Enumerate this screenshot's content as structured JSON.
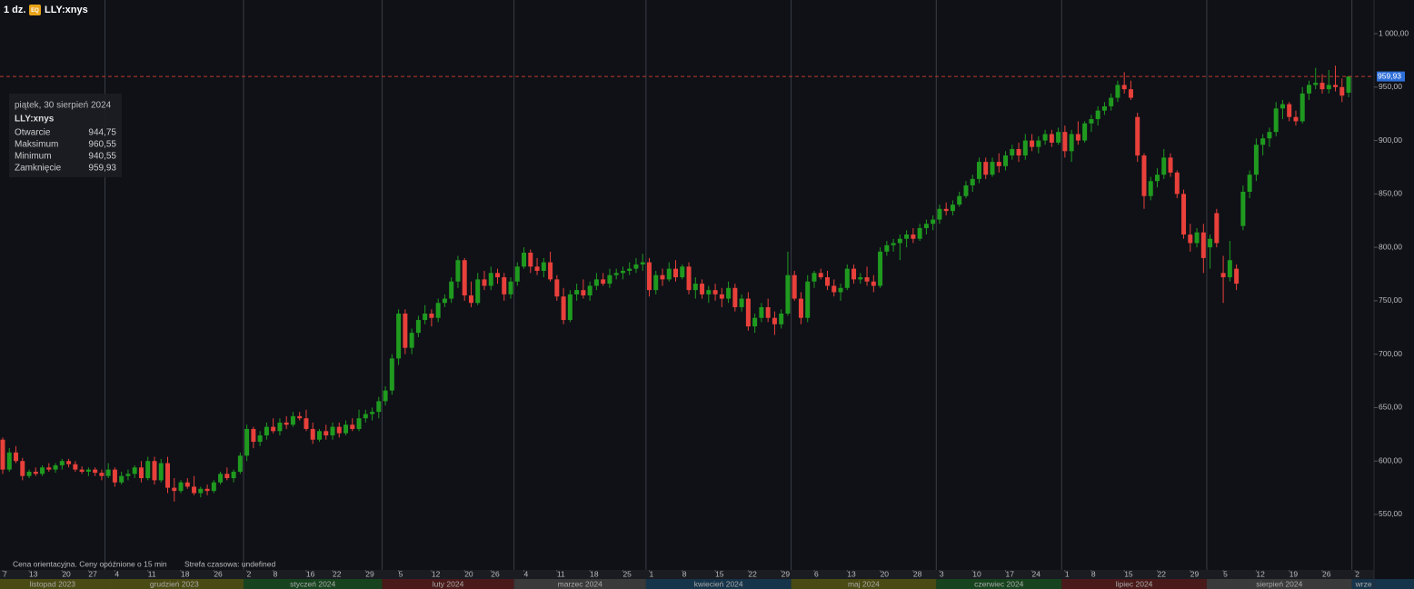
{
  "chart_data": {
    "type": "candlestick",
    "interval": "1 dz.",
    "exchange_badge": "EQ",
    "symbol": "LLY:xnys",
    "ylim": [
      498.1,
      1031.5
    ],
    "yticks": [
      {
        "value": 550,
        "label": "550,00"
      },
      {
        "value": 600,
        "label": "600,00"
      },
      {
        "value": 650,
        "label": "650,00"
      },
      {
        "value": 700,
        "label": "700,00"
      },
      {
        "value": 750,
        "label": "750,00"
      },
      {
        "value": 800,
        "label": "800,00"
      },
      {
        "value": 850,
        "label": "850,00"
      },
      {
        "value": 900,
        "label": "900,00"
      },
      {
        "value": 950,
        "label": "950,00"
      },
      {
        "value": 1000,
        "label": "1 000,00"
      }
    ],
    "xticks": [
      {
        "value": 0,
        "label": "7"
      },
      {
        "value": 4,
        "label": "13"
      },
      {
        "value": 9,
        "label": "20"
      },
      {
        "value": 13,
        "label": "27"
      },
      {
        "value": 17,
        "label": "4"
      },
      {
        "value": 22,
        "label": "11"
      },
      {
        "value": 27,
        "label": "18"
      },
      {
        "value": 32,
        "label": "26"
      },
      {
        "value": 37,
        "label": "2"
      },
      {
        "value": 41,
        "label": "8"
      },
      {
        "value": 46,
        "label": "16"
      },
      {
        "value": 50,
        "label": "22"
      },
      {
        "value": 55,
        "label": "29"
      },
      {
        "value": 60,
        "label": "5"
      },
      {
        "value": 65,
        "label": "12"
      },
      {
        "value": 70,
        "label": "20"
      },
      {
        "value": 74,
        "label": "26"
      },
      {
        "value": 79,
        "label": "4"
      },
      {
        "value": 84,
        "label": "11"
      },
      {
        "value": 89,
        "label": "18"
      },
      {
        "value": 94,
        "label": "25"
      },
      {
        "value": 98,
        "label": "1"
      },
      {
        "value": 103,
        "label": "8"
      },
      {
        "value": 108,
        "label": "15"
      },
      {
        "value": 113,
        "label": "22"
      },
      {
        "value": 118,
        "label": "29"
      },
      {
        "value": 123,
        "label": "6"
      },
      {
        "value": 128,
        "label": "13"
      },
      {
        "value": 133,
        "label": "20"
      },
      {
        "value": 138,
        "label": "28"
      },
      {
        "value": 142,
        "label": "3"
      },
      {
        "value": 147,
        "label": "10"
      },
      {
        "value": 152,
        "label": "17"
      },
      {
        "value": 156,
        "label": "24"
      },
      {
        "value": 161,
        "label": "1"
      },
      {
        "value": 165,
        "label": "8"
      },
      {
        "value": 170,
        "label": "15"
      },
      {
        "value": 175,
        "label": "22"
      },
      {
        "value": 180,
        "label": "29"
      },
      {
        "value": 185,
        "label": "5"
      },
      {
        "value": 190,
        "label": "12"
      },
      {
        "value": 195,
        "label": "19"
      },
      {
        "value": 200,
        "label": "26"
      },
      {
        "value": 205,
        "label": "2"
      }
    ],
    "months": [
      {
        "start": 0,
        "label": "listopad 2023"
      },
      {
        "start": 16,
        "label": "grudzień 2023"
      },
      {
        "start": 37,
        "label": "styczeń 2024"
      },
      {
        "start": 58,
        "label": "luty 2024"
      },
      {
        "start": 78,
        "label": "marzec 2024"
      },
      {
        "start": 98,
        "label": "kwiecień 2024"
      },
      {
        "start": 120,
        "label": "maj 2024"
      },
      {
        "start": 142,
        "label": "czerwiec 2024"
      },
      {
        "start": 161,
        "label": "lipiec 2024"
      },
      {
        "start": 183,
        "label": "sierpień 2024"
      },
      {
        "start": 205,
        "label": "wrze"
      }
    ],
    "up_color": "#1f9a1f",
    "down_color": "#e8403a",
    "last_price_label": "959,93",
    "tooltip": {
      "date": "piątek, 30 sierpień 2024",
      "symbol": "LLY:xnys",
      "rows": [
        {
          "name": "Otwarcie",
          "label": "944,75"
        },
        {
          "name": "Maksimum",
          "label": "960,55"
        },
        {
          "name": "Minimum",
          "label": "940,55"
        },
        {
          "name": "Zamknięcie",
          "label": "959,93"
        }
      ]
    },
    "footer": "Cena orientacyjna. Ceny opóźnione o 15 min",
    "timezone": "Strefa czasowa: undefined",
    "candles": [
      [
        620,
        622,
        588,
        592
      ],
      [
        592,
        612,
        590,
        608
      ],
      [
        608,
        614,
        598,
        600
      ],
      [
        600,
        603,
        582,
        586
      ],
      [
        586,
        592,
        584,
        590
      ],
      [
        590,
        594,
        586,
        588
      ],
      [
        588,
        596,
        586,
        594
      ],
      [
        594,
        598,
        590,
        592
      ],
      [
        592,
        598,
        589,
        596
      ],
      [
        596,
        602,
        592,
        600
      ],
      [
        600,
        602,
        594,
        597
      ],
      [
        597,
        600,
        590,
        592
      ],
      [
        592,
        595,
        588,
        590
      ],
      [
        590,
        594,
        586,
        592
      ],
      [
        592,
        594,
        586,
        589
      ],
      [
        589,
        592,
        582,
        586
      ],
      [
        586,
        598,
        584,
        592
      ],
      [
        592,
        594,
        576,
        580
      ],
      [
        580,
        590,
        578,
        586
      ],
      [
        586,
        592,
        582,
        588
      ],
      [
        588,
        596,
        584,
        594
      ],
      [
        594,
        600,
        580,
        584
      ],
      [
        584,
        604,
        582,
        600
      ],
      [
        600,
        604,
        578,
        582
      ],
      [
        582,
        602,
        580,
        598
      ],
      [
        598,
        604,
        570,
        575
      ],
      [
        575,
        584,
        562,
        572
      ],
      [
        572,
        582,
        570,
        580
      ],
      [
        580,
        584,
        574,
        576
      ],
      [
        576,
        586,
        568,
        570
      ],
      [
        570,
        576,
        566,
        574
      ],
      [
        574,
        578,
        568,
        572
      ],
      [
        572,
        582,
        570,
        580
      ],
      [
        580,
        590,
        578,
        588
      ],
      [
        588,
        594,
        582,
        584
      ],
      [
        584,
        592,
        580,
        590
      ],
      [
        590,
        608,
        588,
        605
      ],
      [
        605,
        634,
        600,
        630
      ],
      [
        630,
        632,
        612,
        618
      ],
      [
        618,
        628,
        614,
        624
      ],
      [
        624,
        636,
        620,
        632
      ],
      [
        632,
        640,
        626,
        628
      ],
      [
        628,
        640,
        624,
        636
      ],
      [
        636,
        642,
        630,
        634
      ],
      [
        634,
        646,
        632,
        642
      ],
      [
        642,
        646,
        638,
        640
      ],
      [
        640,
        648,
        628,
        630
      ],
      [
        630,
        636,
        616,
        620
      ],
      [
        620,
        630,
        618,
        628
      ],
      [
        628,
        634,
        620,
        624
      ],
      [
        624,
        636,
        620,
        632
      ],
      [
        632,
        636,
        622,
        626
      ],
      [
        626,
        638,
        624,
        634
      ],
      [
        634,
        640,
        628,
        630
      ],
      [
        630,
        648,
        628,
        640
      ],
      [
        640,
        648,
        636,
        644
      ],
      [
        644,
        650,
        638,
        646
      ],
      [
        646,
        660,
        640,
        656
      ],
      [
        656,
        670,
        652,
        666
      ],
      [
        666,
        700,
        662,
        696
      ],
      [
        696,
        742,
        690,
        738
      ],
      [
        738,
        742,
        700,
        706
      ],
      [
        706,
        724,
        700,
        720
      ],
      [
        720,
        736,
        716,
        732
      ],
      [
        732,
        746,
        728,
        738
      ],
      [
        738,
        742,
        726,
        734
      ],
      [
        734,
        752,
        730,
        748
      ],
      [
        748,
        756,
        744,
        752
      ],
      [
        752,
        772,
        748,
        768
      ],
      [
        768,
        792,
        762,
        788
      ],
      [
        788,
        790,
        750,
        755
      ],
      [
        755,
        768,
        744,
        748
      ],
      [
        748,
        776,
        746,
        770
      ],
      [
        770,
        778,
        760,
        764
      ],
      [
        764,
        782,
        760,
        776
      ],
      [
        776,
        780,
        766,
        772
      ],
      [
        772,
        776,
        750,
        756
      ],
      [
        756,
        772,
        752,
        768
      ],
      [
        768,
        786,
        764,
        782
      ],
      [
        782,
        800,
        780,
        795
      ],
      [
        795,
        798,
        776,
        782
      ],
      [
        782,
        790,
        774,
        778
      ],
      [
        778,
        790,
        772,
        786
      ],
      [
        786,
        796,
        768,
        770
      ],
      [
        770,
        774,
        750,
        754
      ],
      [
        754,
        762,
        728,
        732
      ],
      [
        732,
        760,
        730,
        756
      ],
      [
        756,
        766,
        750,
        760
      ],
      [
        760,
        770,
        752,
        755
      ],
      [
        755,
        768,
        750,
        764
      ],
      [
        764,
        776,
        760,
        770
      ],
      [
        770,
        776,
        764,
        766
      ],
      [
        766,
        780,
        762,
        774
      ],
      [
        774,
        780,
        770,
        776
      ],
      [
        776,
        782,
        770,
        778
      ],
      [
        778,
        786,
        774,
        780
      ],
      [
        780,
        790,
        776,
        784
      ],
      [
        784,
        794,
        778,
        786
      ],
      [
        786,
        790,
        754,
        760
      ],
      [
        760,
        778,
        756,
        774
      ],
      [
        774,
        780,
        764,
        770
      ],
      [
        770,
        786,
        768,
        780
      ],
      [
        780,
        788,
        768,
        772
      ],
      [
        772,
        784,
        770,
        782
      ],
      [
        782,
        786,
        756,
        760
      ],
      [
        760,
        772,
        752,
        766
      ],
      [
        766,
        770,
        752,
        756
      ],
      [
        756,
        764,
        748,
        760
      ],
      [
        760,
        766,
        750,
        756
      ],
      [
        756,
        762,
        744,
        752
      ],
      [
        752,
        768,
        748,
        762
      ],
      [
        762,
        766,
        740,
        744
      ],
      [
        744,
        756,
        740,
        752
      ],
      [
        752,
        758,
        722,
        726
      ],
      [
        726,
        738,
        720,
        734
      ],
      [
        734,
        748,
        730,
        744
      ],
      [
        744,
        752,
        730,
        734
      ],
      [
        734,
        740,
        718,
        728
      ],
      [
        728,
        742,
        724,
        738
      ],
      [
        738,
        796,
        736,
        774
      ],
      [
        774,
        778,
        750,
        752
      ],
      [
        752,
        758,
        728,
        734
      ],
      [
        734,
        774,
        730,
        768
      ],
      [
        768,
        778,
        762,
        776
      ],
      [
        776,
        780,
        770,
        772
      ],
      [
        772,
        778,
        760,
        764
      ],
      [
        764,
        770,
        754,
        758
      ],
      [
        758,
        766,
        750,
        762
      ],
      [
        762,
        784,
        760,
        780
      ],
      [
        780,
        784,
        766,
        770
      ],
      [
        770,
        776,
        766,
        772
      ],
      [
        772,
        782,
        764,
        768
      ],
      [
        768,
        774,
        758,
        764
      ],
      [
        764,
        800,
        762,
        796
      ],
      [
        796,
        806,
        792,
        802
      ],
      [
        802,
        808,
        796,
        804
      ],
      [
        804,
        812,
        788,
        808
      ],
      [
        808,
        816,
        800,
        812
      ],
      [
        812,
        818,
        804,
        808
      ],
      [
        808,
        822,
        806,
        818
      ],
      [
        818,
        826,
        812,
        822
      ],
      [
        822,
        830,
        816,
        826
      ],
      [
        826,
        840,
        822,
        836
      ],
      [
        836,
        842,
        830,
        834
      ],
      [
        834,
        844,
        830,
        840
      ],
      [
        840,
        852,
        838,
        848
      ],
      [
        848,
        862,
        846,
        858
      ],
      [
        858,
        868,
        852,
        864
      ],
      [
        864,
        884,
        860,
        880
      ],
      [
        880,
        884,
        864,
        868
      ],
      [
        868,
        884,
        866,
        880
      ],
      [
        880,
        888,
        870,
        876
      ],
      [
        876,
        890,
        872,
        886
      ],
      [
        886,
        896,
        882,
        892
      ],
      [
        892,
        898,
        880,
        886
      ],
      [
        886,
        906,
        882,
        900
      ],
      [
        900,
        906,
        890,
        894
      ],
      [
        894,
        904,
        888,
        900
      ],
      [
        900,
        910,
        896,
        906
      ],
      [
        906,
        910,
        894,
        898
      ],
      [
        898,
        912,
        896,
        908
      ],
      [
        908,
        914,
        884,
        890
      ],
      [
        890,
        910,
        880,
        906
      ],
      [
        906,
        918,
        896,
        900
      ],
      [
        900,
        918,
        898,
        916
      ],
      [
        916,
        924,
        908,
        920
      ],
      [
        920,
        932,
        914,
        928
      ],
      [
        928,
        936,
        924,
        932
      ],
      [
        932,
        944,
        928,
        940
      ],
      [
        940,
        956,
        936,
        952
      ],
      [
        952,
        964,
        944,
        948
      ],
      [
        948,
        956,
        938,
        940
      ],
      [
        922,
        926,
        880,
        886
      ],
      [
        886,
        888,
        836,
        848
      ],
      [
        848,
        866,
        844,
        862
      ],
      [
        862,
        874,
        856,
        868
      ],
      [
        868,
        892,
        864,
        884
      ],
      [
        884,
        888,
        866,
        870
      ],
      [
        870,
        872,
        846,
        850
      ],
      [
        850,
        854,
        808,
        812
      ],
      [
        812,
        822,
        796,
        804
      ],
      [
        804,
        818,
        800,
        814
      ],
      [
        814,
        822,
        776,
        790
      ],
      [
        800,
        812,
        780,
        808
      ],
      [
        832,
        836,
        800,
        804
      ],
      [
        776,
        792,
        748,
        772
      ],
      [
        772,
        806,
        768,
        788
      ],
      [
        780,
        784,
        760,
        766
      ],
      [
        820,
        858,
        816,
        852
      ],
      [
        852,
        872,
        846,
        868
      ],
      [
        868,
        902,
        862,
        896
      ],
      [
        896,
        906,
        886,
        902
      ],
      [
        902,
        912,
        894,
        908
      ],
      [
        908,
        936,
        904,
        930
      ],
      [
        930,
        938,
        920,
        934
      ],
      [
        934,
        936,
        918,
        922
      ],
      [
        922,
        928,
        914,
        918
      ],
      [
        918,
        950,
        916,
        944
      ],
      [
        944,
        956,
        938,
        952
      ],
      [
        952,
        968,
        948,
        954
      ],
      [
        954,
        962,
        944,
        948
      ],
      [
        948,
        966,
        944,
        952
      ],
      [
        952,
        970,
        946,
        950
      ],
      [
        950,
        958,
        936,
        942
      ],
      [
        944.75,
        960.55,
        940.55,
        959.93
      ]
    ]
  }
}
